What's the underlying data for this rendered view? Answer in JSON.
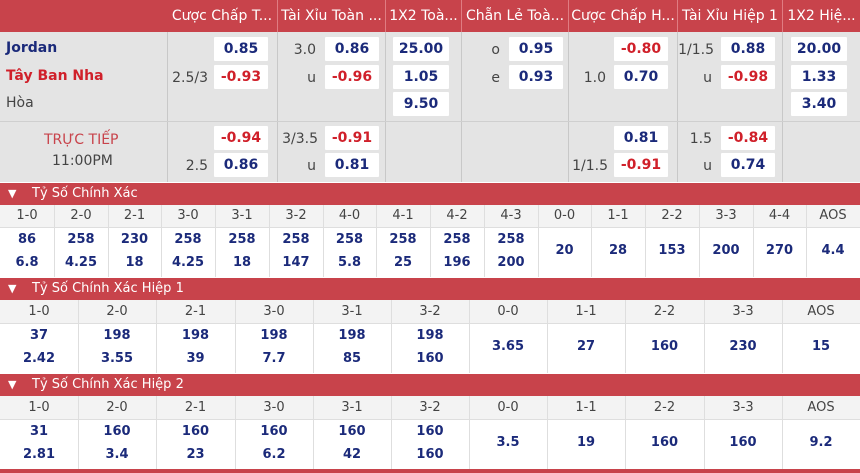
{
  "headers": [
    "Cược Chấp T...",
    "Tài Xỉu Toàn ...",
    "1X2 Toà...",
    "Chẵn Lẻ Toà...",
    "Cược Chấp H...",
    "Tài Xỉu Hiệp 1",
    "1X2 Hiệ..."
  ],
  "match": {
    "home": "Jordan",
    "away": "Tây Ban Nha",
    "draw": "Hòa",
    "status": "TRỰC TIẾP",
    "time": "11:00PM"
  },
  "odds": {
    "main": {
      "hdp_line": "2.5/3",
      "hdp_home": "0.85",
      "hdp_away": "-0.93",
      "ou_line": "3.0",
      "ou_over": "0.86",
      "ou_under_label": "u",
      "ou_under": "-0.96",
      "x12_home": "25.00",
      "x12_away": "1.05",
      "x12_draw": "9.50",
      "oe_o_label": "o",
      "oe_o": "0.95",
      "oe_e_label": "e",
      "oe_e": "0.93",
      "h1_hdp_line": "1.0",
      "h1_hdp_home": "-0.80",
      "h1_hdp_away": "0.70",
      "h1_ou_line": "1/1.5",
      "h1_ou_over": "0.88",
      "h1_ou_under_label": "u",
      "h1_ou_under": "-0.98",
      "h1_x12_home": "20.00",
      "h1_x12_away": "1.33",
      "h1_x12_draw": "3.40"
    },
    "alt": {
      "hdp_line": "2.5",
      "hdp_home": "-0.94",
      "hdp_away": "0.86",
      "ou_line": "3/3.5",
      "ou_over": "-0.91",
      "ou_under_label": "u",
      "ou_under": "0.81",
      "h1_hdp_line": "1/1.5",
      "h1_hdp_home": "0.81",
      "h1_hdp_away": "-0.91",
      "h1_ou_line": "1.5",
      "h1_ou_over": "-0.84",
      "h1_ou_under_label": "u",
      "h1_ou_under": "0.74"
    }
  },
  "sections": [
    {
      "title": "Tỷ Số Chính Xác",
      "columns": [
        {
          "label": "1-0",
          "top": "86",
          "bottom": "6.8"
        },
        {
          "label": "2-0",
          "top": "258",
          "bottom": "4.25"
        },
        {
          "label": "2-1",
          "top": "230",
          "bottom": "18"
        },
        {
          "label": "3-0",
          "top": "258",
          "bottom": "4.25"
        },
        {
          "label": "3-1",
          "top": "258",
          "bottom": "18"
        },
        {
          "label": "3-2",
          "top": "258",
          "bottom": "147"
        },
        {
          "label": "4-0",
          "top": "258",
          "bottom": "5.8"
        },
        {
          "label": "4-1",
          "top": "258",
          "bottom": "25"
        },
        {
          "label": "4-2",
          "top": "258",
          "bottom": "196"
        },
        {
          "label": "4-3",
          "top": "258",
          "bottom": "200"
        },
        {
          "label": "0-0",
          "single": "20"
        },
        {
          "label": "1-1",
          "single": "28"
        },
        {
          "label": "2-2",
          "single": "153"
        },
        {
          "label": "3-3",
          "single": "200"
        },
        {
          "label": "4-4",
          "single": "270"
        },
        {
          "label": "AOS",
          "single": "4.4"
        }
      ]
    },
    {
      "title": "Tỷ Số Chính Xác Hiệp 1",
      "columns": [
        {
          "label": "1-0",
          "top": "37",
          "bottom": "2.42"
        },
        {
          "label": "2-0",
          "top": "198",
          "bottom": "3.55"
        },
        {
          "label": "2-1",
          "top": "198",
          "bottom": "39"
        },
        {
          "label": "3-0",
          "top": "198",
          "bottom": "7.7"
        },
        {
          "label": "3-1",
          "top": "198",
          "bottom": "85"
        },
        {
          "label": "3-2",
          "top": "198",
          "bottom": "160"
        },
        {
          "label": "0-0",
          "single": "3.65"
        },
        {
          "label": "1-1",
          "single": "27"
        },
        {
          "label": "2-2",
          "single": "160"
        },
        {
          "label": "3-3",
          "single": "230"
        },
        {
          "label": "AOS",
          "single": "15"
        }
      ]
    },
    {
      "title": "Tỷ Số Chính Xác Hiệp 2",
      "columns": [
        {
          "label": "1-0",
          "top": "31",
          "bottom": "2.81"
        },
        {
          "label": "2-0",
          "top": "160",
          "bottom": "3.4"
        },
        {
          "label": "2-1",
          "top": "160",
          "bottom": "23"
        },
        {
          "label": "3-0",
          "top": "160",
          "bottom": "6.2"
        },
        {
          "label": "3-1",
          "top": "160",
          "bottom": "42"
        },
        {
          "label": "3-2",
          "top": "160",
          "bottom": "160"
        },
        {
          "label": "0-0",
          "single": "3.5"
        },
        {
          "label": "1-1",
          "single": "19"
        },
        {
          "label": "2-2",
          "single": "160"
        },
        {
          "label": "3-3",
          "single": "160"
        },
        {
          "label": "AOS",
          "single": "9.2"
        }
      ]
    }
  ],
  "colors": {
    "header_bg": "#c8434b",
    "positive": "#1b2a7a",
    "negative": "#d0202a",
    "home_team": "#1b2a7a",
    "away_team": "#d0202a"
  },
  "icons": {
    "section_toggle": "chevron-down-icon"
  }
}
